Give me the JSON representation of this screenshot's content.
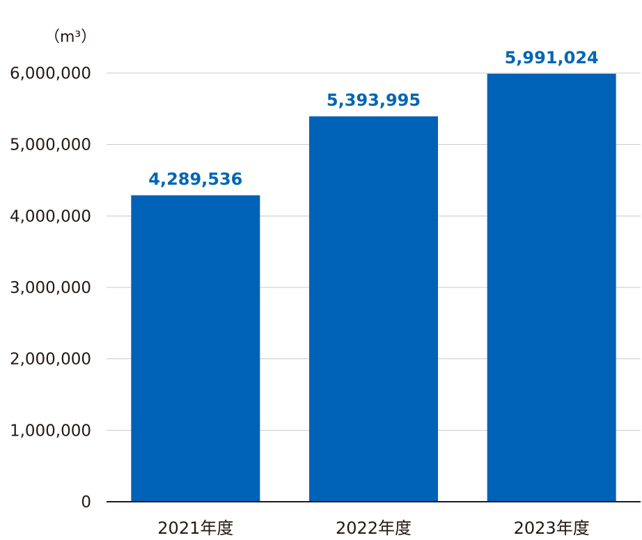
{
  "chart_data": {
    "type": "bar",
    "unit": "（m³）",
    "categories": [
      "2021年度",
      "2022年度",
      "2023年度"
    ],
    "values": [
      4289536,
      5393995,
      5991024
    ],
    "value_labels": [
      "4,289,536",
      "5,393,995",
      "5,991,024"
    ],
    "yticks": [
      0,
      1000000,
      2000000,
      3000000,
      4000000,
      5000000,
      6000000
    ],
    "ytick_labels": [
      "0",
      "1,000,000",
      "2,000,000",
      "3,000,000",
      "4,000,000",
      "5,000,000",
      "6,000,000"
    ],
    "ylim": [
      0,
      6000000
    ],
    "grid": true,
    "bar_color": "#0062b7",
    "label_color": "#0066b3",
    "grid_color": "#c8c8c8",
    "axis_color": "#231815"
  }
}
